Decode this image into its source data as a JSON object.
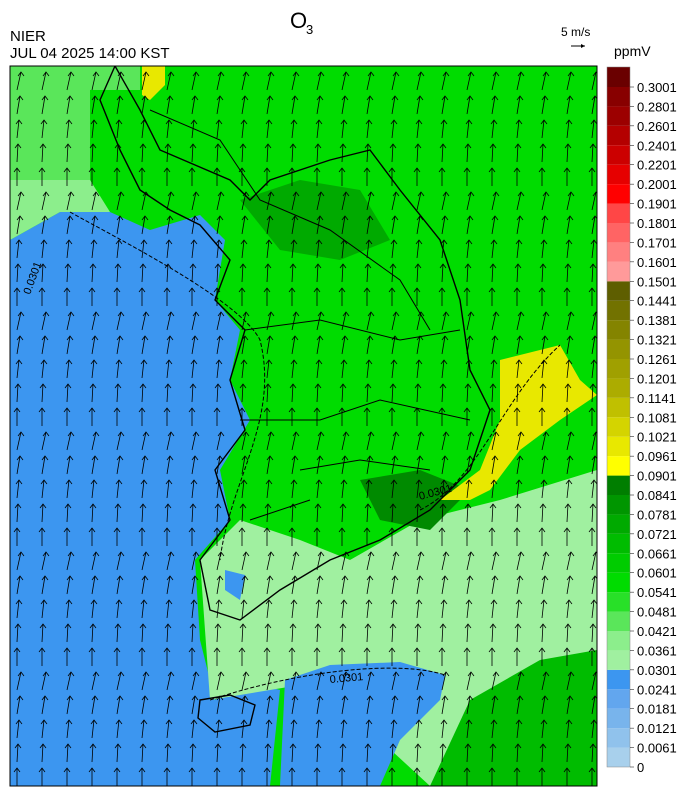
{
  "header": {
    "title": "O",
    "title_subscript": "3",
    "agency": "NIER",
    "datetime": "JUL 04 2025 14:00 KST",
    "wind_scale": "5 m/s"
  },
  "colorbar": {
    "unit": "ppmV",
    "ticks": [
      0,
      0.0061,
      0.0121,
      0.0181,
      0.0241,
      0.0301,
      0.0361,
      0.0421,
      0.0481,
      0.0541,
      0.0601,
      0.0661,
      0.0721,
      0.0781,
      0.0841,
      0.0901,
      0.0961,
      0.1021,
      0.1081,
      0.1141,
      0.1201,
      0.1261,
      0.1321,
      0.1381,
      0.1441,
      0.1501,
      0.1601,
      0.1701,
      0.1801,
      0.1901,
      0.2001,
      0.2201,
      0.2401,
      0.2601,
      0.2801,
      0.3001
    ],
    "colors": [
      "#a8d0ec",
      "#90c2ec",
      "#78b4ec",
      "#62a6ee",
      "#3c96f0",
      "#a0f0a0",
      "#8cee8c",
      "#5ae65a",
      "#28e028",
      "#00dc00",
      "#00cc00",
      "#00bc00",
      "#00aa00",
      "#009600",
      "#007e00",
      "#ffff00",
      "#e8e800",
      "#d4d400",
      "#c0c000",
      "#acac00",
      "#a0a000",
      "#949400",
      "#848400",
      "#727200",
      "#5e5e00",
      "#ff9a9a",
      "#ff8080",
      "#ff6464",
      "#ff4646",
      "#ff0000",
      "#e60000",
      "#cc0000",
      "#b40000",
      "#9c0000",
      "#880000",
      "#6a0000"
    ]
  },
  "map": {
    "contour_label": "0.0301"
  }
}
